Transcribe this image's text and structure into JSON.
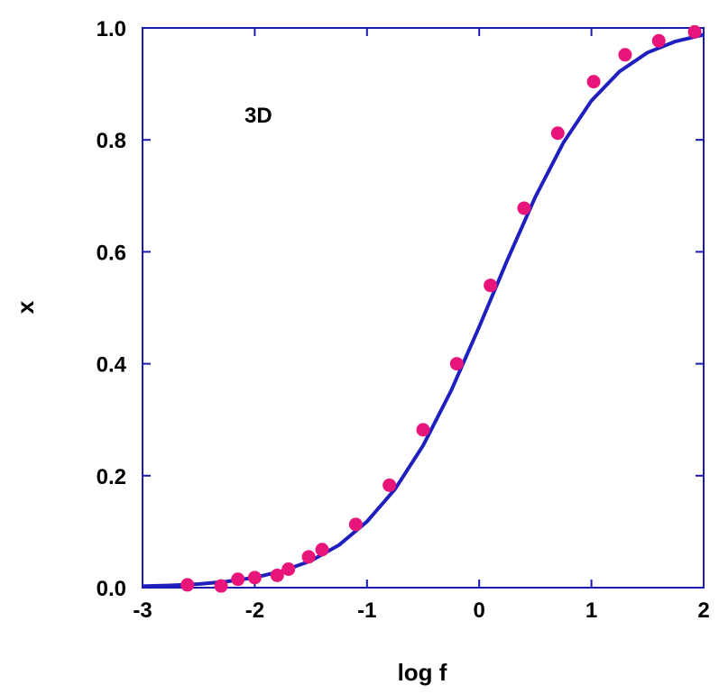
{
  "chart_data": {
    "type": "scatter",
    "xlabel": "log f",
    "ylabel": "x",
    "annotation": "3D",
    "xlim": [
      -3,
      2
    ],
    "ylim": [
      0,
      1.0
    ],
    "x_ticks": [
      -3,
      -2,
      -1,
      0,
      1,
      2
    ],
    "x_tick_labels": [
      "-3",
      "-2",
      "-1",
      "0",
      "1",
      "2"
    ],
    "y_ticks": [
      0,
      0.2,
      0.4,
      0.6,
      0.8,
      1.0
    ],
    "y_tick_labels": [
      "0.0",
      "0.2",
      "0.4",
      "0.6",
      "0.8",
      "1.0"
    ],
    "grid": false,
    "colors": {
      "points": "#e8157a",
      "curve": "#1f1fbf",
      "axes": "#1a1ab0"
    },
    "series": [
      {
        "kind": "points",
        "x": [
          -2.6,
          -2.3,
          -2.15,
          -2.0,
          -1.8,
          -1.7,
          -1.52,
          -1.4,
          -1.1,
          -0.8,
          -0.5,
          -0.2,
          0.1,
          0.4,
          0.7,
          1.02,
          1.3,
          1.6,
          1.92
        ],
        "y": [
          0.005,
          0.003,
          0.015,
          0.018,
          0.022,
          0.033,
          0.055,
          0.068,
          0.113,
          0.183,
          0.282,
          0.4,
          0.54,
          0.678,
          0.812,
          0.904,
          0.952,
          0.977,
          0.993
        ]
      },
      {
        "kind": "curve",
        "x": [
          -3.0,
          -2.75,
          -2.5,
          -2.25,
          -2.0,
          -1.75,
          -1.5,
          -1.25,
          -1.0,
          -0.75,
          -0.5,
          -0.25,
          0.0,
          0.25,
          0.5,
          0.75,
          1.0,
          1.25,
          1.5,
          1.75,
          2.0
        ],
        "y": [
          0.0025,
          0.004,
          0.0065,
          0.011,
          0.018,
          0.03,
          0.048,
          0.076,
          0.118,
          0.176,
          0.254,
          0.352,
          0.466,
          0.585,
          0.698,
          0.795,
          0.87,
          0.922,
          0.956,
          0.976,
          0.988
        ]
      }
    ]
  }
}
